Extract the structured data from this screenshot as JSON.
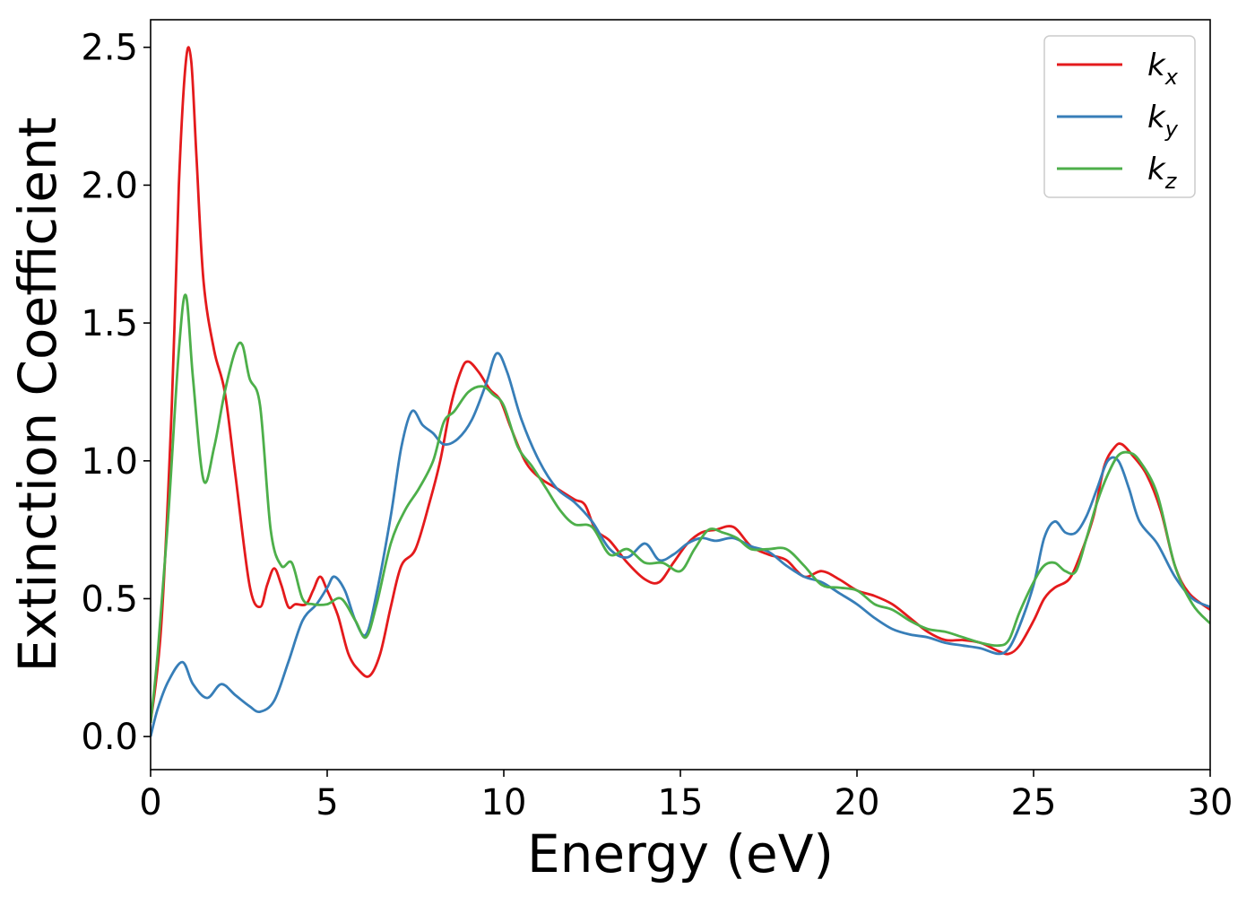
{
  "chart_data": {
    "type": "line",
    "title": "",
    "xlabel": "Energy (eV)",
    "ylabel": "Extinction Coefficient",
    "xlim": [
      0,
      30
    ],
    "ylim": [
      -0.12,
      2.6
    ],
    "xticks": [
      0,
      5,
      10,
      15,
      20,
      25,
      30
    ],
    "xtick_labels": [
      "0",
      "5",
      "10",
      "15",
      "20",
      "25",
      "30"
    ],
    "yticks": [
      0.0,
      0.5,
      1.0,
      1.5,
      2.0,
      2.5
    ],
    "ytick_labels": [
      "0.0",
      "0.5",
      "1.0",
      "1.5",
      "2.0",
      "2.5"
    ],
    "grid": false,
    "legend_position": "top-right",
    "series": [
      {
        "name": "k_x",
        "label_main": "k",
        "label_sub": "x",
        "color": "#e41a1c",
        "x": [
          0,
          0.3,
          0.6,
          0.8,
          1.0,
          1.15,
          1.3,
          1.5,
          1.8,
          2.1,
          2.4,
          2.8,
          3.1,
          3.3,
          3.5,
          3.7,
          3.9,
          4.1,
          4.4,
          4.6,
          4.8,
          5.0,
          5.3,
          5.6,
          5.9,
          6.2,
          6.5,
          6.8,
          7.1,
          7.5,
          7.9,
          8.2,
          8.5,
          8.8,
          9.0,
          9.3,
          9.6,
          9.9,
          10.2,
          10.6,
          11.0,
          11.5,
          12.0,
          12.3,
          12.6,
          13.0,
          13.5,
          14.0,
          14.4,
          14.8,
          15.2,
          15.6,
          16.0,
          16.5,
          17.0,
          17.5,
          18.0,
          18.5,
          19.0,
          19.5,
          20.0,
          20.5,
          21.0,
          21.5,
          22.0,
          22.5,
          23.0,
          23.5,
          24.0,
          24.3,
          24.6,
          25.0,
          25.3,
          25.6,
          26.0,
          26.3,
          26.7,
          27.0,
          27.3,
          27.5,
          27.8,
          28.2,
          28.6,
          29.0,
          29.4,
          30.0
        ],
        "y": [
          0.05,
          0.4,
          1.2,
          2.0,
          2.45,
          2.45,
          2.1,
          1.65,
          1.4,
          1.25,
          0.95,
          0.55,
          0.47,
          0.55,
          0.61,
          0.55,
          0.47,
          0.48,
          0.48,
          0.53,
          0.58,
          0.53,
          0.44,
          0.3,
          0.24,
          0.22,
          0.3,
          0.47,
          0.62,
          0.68,
          0.85,
          1.0,
          1.2,
          1.33,
          1.36,
          1.32,
          1.26,
          1.22,
          1.12,
          1.0,
          0.94,
          0.9,
          0.86,
          0.84,
          0.75,
          0.71,
          0.63,
          0.57,
          0.56,
          0.63,
          0.7,
          0.74,
          0.75,
          0.76,
          0.69,
          0.66,
          0.64,
          0.58,
          0.6,
          0.57,
          0.53,
          0.51,
          0.48,
          0.43,
          0.38,
          0.35,
          0.35,
          0.34,
          0.31,
          0.3,
          0.33,
          0.42,
          0.5,
          0.54,
          0.57,
          0.65,
          0.8,
          0.98,
          1.05,
          1.06,
          1.02,
          0.95,
          0.82,
          0.62,
          0.52,
          0.46
        ]
      },
      {
        "name": "k_y",
        "label_main": "k",
        "label_sub": "y",
        "color": "#377eb8",
        "x": [
          0,
          0.2,
          0.5,
          0.9,
          1.2,
          1.6,
          2.0,
          2.4,
          2.8,
          3.1,
          3.5,
          3.9,
          4.3,
          4.7,
          5.0,
          5.2,
          5.5,
          5.8,
          6.1,
          6.4,
          6.8,
          7.1,
          7.4,
          7.7,
          8.0,
          8.3,
          8.7,
          9.1,
          9.5,
          9.8,
          10.1,
          10.5,
          11.0,
          11.5,
          12.0,
          12.5,
          13.0,
          13.5,
          14.0,
          14.4,
          14.8,
          15.2,
          15.6,
          16.0,
          16.5,
          17.0,
          17.5,
          18.0,
          18.5,
          19.0,
          19.5,
          20.0,
          20.5,
          21.0,
          21.5,
          22.0,
          22.5,
          23.0,
          23.5,
          24.0,
          24.3,
          24.6,
          25.0,
          25.3,
          25.6,
          25.9,
          26.2,
          26.5,
          26.8,
          27.1,
          27.4,
          27.7,
          28.0,
          28.5,
          29.0,
          29.5,
          30.0
        ],
        "y": [
          0.0,
          0.1,
          0.2,
          0.27,
          0.19,
          0.14,
          0.19,
          0.15,
          0.11,
          0.09,
          0.13,
          0.27,
          0.42,
          0.48,
          0.54,
          0.58,
          0.53,
          0.42,
          0.37,
          0.52,
          0.8,
          1.05,
          1.18,
          1.13,
          1.1,
          1.06,
          1.08,
          1.15,
          1.28,
          1.39,
          1.32,
          1.15,
          1.0,
          0.9,
          0.85,
          0.78,
          0.68,
          0.65,
          0.7,
          0.64,
          0.66,
          0.7,
          0.72,
          0.71,
          0.72,
          0.69,
          0.67,
          0.62,
          0.58,
          0.56,
          0.52,
          0.48,
          0.43,
          0.39,
          0.37,
          0.36,
          0.34,
          0.33,
          0.32,
          0.3,
          0.32,
          0.4,
          0.55,
          0.72,
          0.78,
          0.74,
          0.74,
          0.8,
          0.9,
          1.0,
          1.0,
          0.9,
          0.78,
          0.7,
          0.58,
          0.5,
          0.47
        ]
      },
      {
        "name": "k_z",
        "label_main": "k",
        "label_sub": "z",
        "color": "#4daf4a",
        "x": [
          0,
          0.2,
          0.5,
          0.8,
          1.0,
          1.2,
          1.5,
          1.8,
          2.1,
          2.4,
          2.6,
          2.8,
          3.1,
          3.4,
          3.7,
          4.0,
          4.3,
          4.6,
          5.0,
          5.4,
          5.8,
          6.1,
          6.4,
          6.8,
          7.2,
          7.6,
          8.0,
          8.3,
          8.6,
          9.0,
          9.4,
          9.7,
          10.0,
          10.4,
          10.8,
          11.2,
          11.6,
          12.0,
          12.5,
          13.0,
          13.5,
          14.0,
          14.5,
          15.0,
          15.4,
          15.8,
          16.2,
          16.6,
          17.0,
          17.5,
          18.0,
          18.5,
          19.0,
          19.5,
          20.0,
          20.5,
          21.0,
          21.5,
          22.0,
          22.5,
          23.0,
          23.5,
          24.0,
          24.3,
          24.6,
          25.0,
          25.3,
          25.6,
          25.9,
          26.2,
          26.5,
          26.8,
          27.1,
          27.4,
          27.7,
          28.0,
          28.5,
          29.0,
          29.5,
          30.0
        ],
        "y": [
          0.05,
          0.3,
          0.8,
          1.4,
          1.6,
          1.3,
          0.93,
          1.05,
          1.25,
          1.4,
          1.42,
          1.3,
          1.2,
          0.75,
          0.62,
          0.63,
          0.5,
          0.48,
          0.48,
          0.5,
          0.42,
          0.36,
          0.48,
          0.7,
          0.82,
          0.9,
          1.0,
          1.14,
          1.18,
          1.25,
          1.27,
          1.24,
          1.2,
          1.05,
          0.98,
          0.9,
          0.82,
          0.77,
          0.76,
          0.66,
          0.68,
          0.63,
          0.63,
          0.6,
          0.68,
          0.75,
          0.74,
          0.72,
          0.68,
          0.68,
          0.68,
          0.62,
          0.55,
          0.54,
          0.53,
          0.48,
          0.46,
          0.42,
          0.39,
          0.38,
          0.36,
          0.34,
          0.33,
          0.35,
          0.45,
          0.56,
          0.62,
          0.63,
          0.6,
          0.6,
          0.72,
          0.85,
          0.95,
          1.02,
          1.03,
          1.0,
          0.88,
          0.62,
          0.48,
          0.41
        ]
      }
    ]
  }
}
